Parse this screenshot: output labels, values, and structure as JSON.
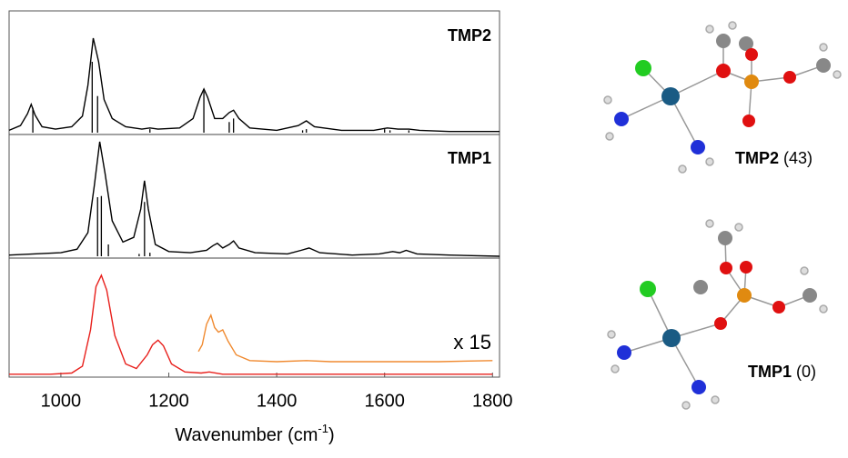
{
  "chart_data": [
    {
      "type": "line",
      "title": "TMP2",
      "xlim": [
        904,
        1813
      ],
      "ylim": [
        0,
        100
      ],
      "series": [
        {
          "color": "#000000",
          "x": [
            904,
            925,
            938,
            945,
            952,
            965,
            990,
            1020,
            1040,
            1050,
            1060,
            1070,
            1080,
            1095,
            1120,
            1150,
            1165,
            1180,
            1220,
            1245,
            1258,
            1265,
            1272,
            1285,
            1300,
            1312,
            1320,
            1330,
            1350,
            1400,
            1440,
            1455,
            1470,
            1520,
            1580,
            1605,
            1625,
            1645,
            1665,
            1720,
            1813
          ],
          "values": [
            2,
            6,
            16,
            24,
            15,
            5,
            3,
            5,
            14,
            40,
            80,
            60,
            28,
            12,
            5,
            3,
            4,
            3,
            4,
            12,
            30,
            37,
            30,
            12,
            12,
            17,
            19,
            12,
            4,
            2,
            6,
            10,
            5,
            2,
            2,
            4,
            3,
            3,
            2,
            1,
            1
          ]
        },
        {
          "type": "stick",
          "color": "#000000",
          "x": [
            948,
            1058,
            1068,
            1165,
            1265,
            1312,
            1320,
            1448,
            1455,
            1600,
            1610,
            1645
          ],
          "values": [
            21,
            60,
            31,
            3,
            35,
            9,
            12,
            2,
            3,
            3,
            2,
            2
          ]
        }
      ]
    },
    {
      "type": "line",
      "title": "TMP1",
      "xlim": [
        904,
        1813
      ],
      "ylim": [
        0,
        100
      ],
      "series": [
        {
          "color": "#000000",
          "x": [
            904,
            950,
            1000,
            1030,
            1050,
            1062,
            1072,
            1082,
            1095,
            1115,
            1135,
            1148,
            1155,
            1162,
            1175,
            1200,
            1240,
            1270,
            1282,
            1290,
            1300,
            1312,
            1320,
            1330,
            1360,
            1420,
            1445,
            1460,
            1480,
            1540,
            1590,
            1615,
            1628,
            1640,
            1660,
            1720,
            1813
          ],
          "values": [
            1,
            2,
            3,
            6,
            20,
            60,
            97,
            70,
            30,
            12,
            16,
            40,
            64,
            40,
            10,
            4,
            3,
            5,
            9,
            11,
            7,
            10,
            13,
            7,
            3,
            2,
            5,
            7,
            3,
            1,
            2,
            4,
            3,
            5,
            2,
            1,
            0
          ]
        },
        {
          "type": "stick",
          "color": "#000000",
          "x": [
            1068,
            1075,
            1088,
            1145,
            1155,
            1165
          ],
          "values": [
            50,
            51,
            10,
            2,
            46,
            3
          ]
        }
      ]
    },
    {
      "type": "line",
      "xlim": [
        904,
        1813
      ],
      "ylim": [
        0,
        100
      ],
      "xticks": [
        1000,
        1200,
        1400,
        1600,
        1800
      ],
      "x_label": {
        "text": "Wavenumber (cm",
        "sup": "-1",
        "end": ")"
      },
      "annotation": "x 15",
      "series": [
        {
          "color": "#e8201c",
          "x": [
            904,
            980,
            1020,
            1040,
            1055,
            1065,
            1075,
            1085,
            1100,
            1120,
            1140,
            1160,
            1170,
            1180,
            1190,
            1205,
            1230,
            1260,
            1275,
            1300,
            1400,
            1600,
            1800
          ],
          "values": [
            1,
            1,
            2,
            8,
            40,
            78,
            88,
            75,
            35,
            10,
            6,
            18,
            27,
            31,
            26,
            10,
            3,
            2,
            3,
            1,
            1,
            1,
            1
          ]
        },
        {
          "color": "#f08a30",
          "x": [
            1255,
            1262,
            1270,
            1278,
            1285,
            1292,
            1300,
            1310,
            1325,
            1350,
            1400,
            1455,
            1500,
            1600,
            1700,
            1800
          ],
          "values": [
            21,
            27,
            45,
            53,
            42,
            38,
            40,
            30,
            18,
            13,
            12,
            13,
            12,
            12,
            12,
            13
          ]
        }
      ]
    }
  ],
  "structures": [
    {
      "name": "TMP2",
      "energy": "(43)"
    },
    {
      "name": "TMP1",
      "energy": "(0)"
    }
  ]
}
